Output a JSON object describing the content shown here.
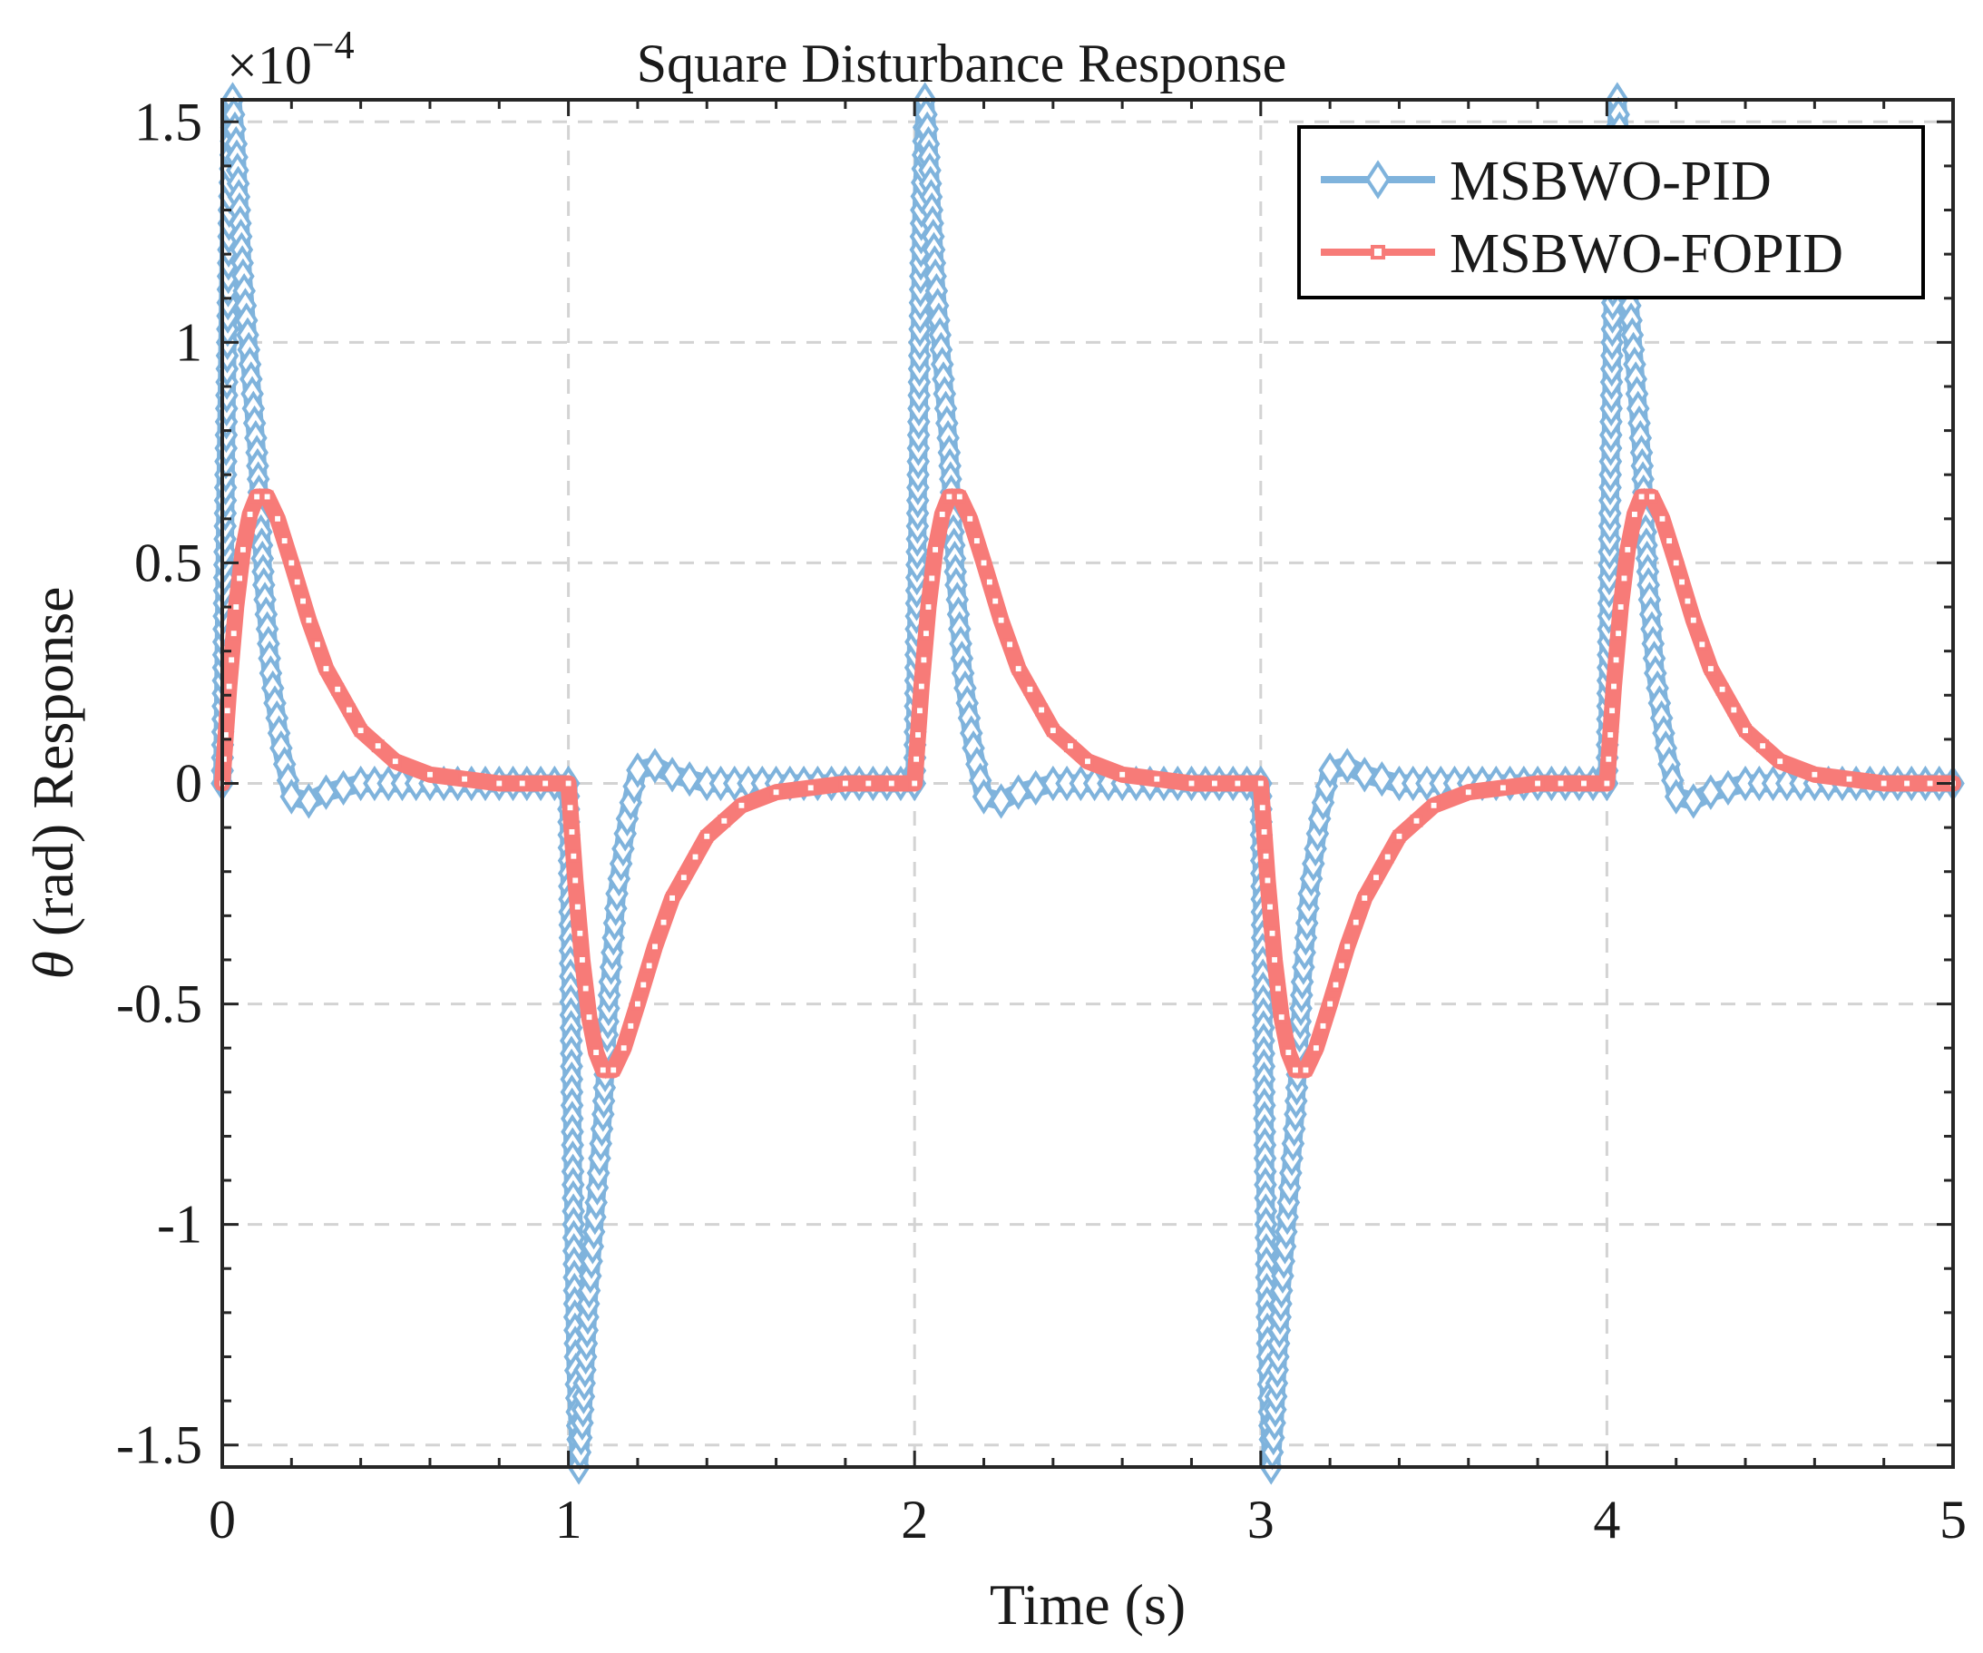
{
  "chart_data": {
    "type": "line",
    "title": "Square Disturbance Response",
    "xlabel": "Time (s)",
    "ylabel_symbol": "θ",
    "ylabel_rest": " (rad) Response",
    "y_exponent_label": "×10",
    "y_exponent_power": "−4",
    "xlim": [
      0,
      5
    ],
    "ylim": [
      -1.55,
      1.55
    ],
    "x_ticks": [
      0,
      1,
      2,
      3,
      4,
      5
    ],
    "x_tick_labels": [
      "0",
      "1",
      "2",
      "3",
      "4",
      "5"
    ],
    "y_ticks": [
      -1.5,
      -1,
      -0.5,
      0,
      0.5,
      1,
      1.5
    ],
    "y_tick_labels": [
      "-1.5",
      "-1",
      "-0.5",
      "0",
      "0.5",
      "1",
      "1.5"
    ],
    "grid": true,
    "legend_position": "top-right",
    "series": [
      {
        "name": "MSBWO-PID",
        "color": "#7fb3dc",
        "marker": "diamond",
        "x": [
          0,
          0.01,
          0.02,
          0.03,
          0.04,
          0.06,
          0.08,
          0.1,
          0.12,
          0.14,
          0.17,
          0.2,
          0.25,
          0.3,
          0.4,
          0.6,
          1.0,
          1.0,
          1.01,
          1.02,
          1.03,
          1.04,
          1.06,
          1.08,
          1.1,
          1.12,
          1.14,
          1.17,
          1.2,
          1.25,
          1.3,
          1.4,
          1.6,
          2.0,
          2.0,
          2.01,
          2.02,
          2.03,
          2.04,
          2.06,
          2.08,
          2.1,
          2.12,
          2.14,
          2.17,
          2.2,
          2.25,
          2.3,
          2.4,
          2.6,
          3.0,
          3.0,
          3.01,
          3.02,
          3.03,
          3.04,
          3.06,
          3.08,
          3.1,
          3.12,
          3.14,
          3.17,
          3.2,
          3.25,
          3.3,
          3.4,
          3.6,
          4.0,
          4.0,
          4.01,
          4.02,
          4.03,
          4.04,
          4.06,
          4.08,
          4.1,
          4.12,
          4.14,
          4.17,
          4.2,
          4.25,
          4.3,
          4.4,
          4.6,
          5.0
        ],
        "y": [
          0,
          0.7,
          1.3,
          1.55,
          1.45,
          1.15,
          0.95,
          0.75,
          0.45,
          0.25,
          0.08,
          -0.03,
          -0.04,
          -0.02,
          0.0,
          0.0,
          0.0,
          0,
          -0.7,
          -1.3,
          -1.55,
          -1.45,
          -1.15,
          -0.95,
          -0.75,
          -0.45,
          -0.25,
          -0.08,
          0.03,
          0.04,
          0.02,
          0.0,
          0.0,
          0.0,
          0,
          0.7,
          1.3,
          1.55,
          1.45,
          1.15,
          0.95,
          0.75,
          0.45,
          0.25,
          0.08,
          -0.03,
          -0.04,
          -0.02,
          0.0,
          0.0,
          0.0,
          0,
          -0.7,
          -1.3,
          -1.55,
          -1.45,
          -1.15,
          -0.95,
          -0.75,
          -0.45,
          -0.25,
          -0.08,
          0.03,
          0.04,
          0.02,
          0.0,
          0.0,
          0.0,
          0,
          0.7,
          1.3,
          1.55,
          1.45,
          1.15,
          0.95,
          0.75,
          0.45,
          0.25,
          0.08,
          -0.03,
          -0.04,
          -0.02,
          0.0,
          0.0,
          0.0
        ]
      },
      {
        "name": "MSBWO-FOPID",
        "color": "#f77b78",
        "marker": "square",
        "x": [
          0,
          0.02,
          0.04,
          0.06,
          0.08,
          0.1,
          0.13,
          0.16,
          0.2,
          0.25,
          0.3,
          0.4,
          0.5,
          0.6,
          0.7,
          0.8,
          1.0,
          1.0,
          1.02,
          1.04,
          1.06,
          1.08,
          1.1,
          1.13,
          1.16,
          1.2,
          1.25,
          1.3,
          1.4,
          1.5,
          1.6,
          1.7,
          1.8,
          2.0,
          2.0,
          2.02,
          2.04,
          2.06,
          2.08,
          2.1,
          2.13,
          2.16,
          2.2,
          2.25,
          2.3,
          2.4,
          2.5,
          2.6,
          2.7,
          2.8,
          3.0,
          3.0,
          3.02,
          3.04,
          3.06,
          3.08,
          3.1,
          3.13,
          3.16,
          3.2,
          3.25,
          3.3,
          3.4,
          3.5,
          3.6,
          3.7,
          3.8,
          4.0,
          4.0,
          4.02,
          4.04,
          4.06,
          4.08,
          4.1,
          4.13,
          4.16,
          4.2,
          4.25,
          4.3,
          4.4,
          4.5,
          4.6,
          4.7,
          4.8,
          5.0
        ],
        "y": [
          0,
          0.22,
          0.4,
          0.53,
          0.61,
          0.65,
          0.65,
          0.6,
          0.5,
          0.37,
          0.26,
          0.12,
          0.05,
          0.02,
          0.01,
          0.0,
          0.0,
          0,
          -0.22,
          -0.4,
          -0.53,
          -0.61,
          -0.65,
          -0.65,
          -0.6,
          -0.5,
          -0.37,
          -0.26,
          -0.12,
          -0.05,
          -0.02,
          -0.01,
          0.0,
          0.0,
          0,
          0.22,
          0.4,
          0.53,
          0.61,
          0.65,
          0.65,
          0.6,
          0.5,
          0.37,
          0.26,
          0.12,
          0.05,
          0.02,
          0.01,
          0.0,
          0.0,
          0,
          -0.22,
          -0.4,
          -0.53,
          -0.61,
          -0.65,
          -0.65,
          -0.6,
          -0.5,
          -0.37,
          -0.26,
          -0.12,
          -0.05,
          -0.02,
          -0.01,
          0.0,
          0.0,
          0,
          0.22,
          0.4,
          0.53,
          0.61,
          0.65,
          0.65,
          0.6,
          0.5,
          0.37,
          0.26,
          0.12,
          0.05,
          0.02,
          0.01,
          0.0,
          0.0
        ]
      }
    ]
  }
}
